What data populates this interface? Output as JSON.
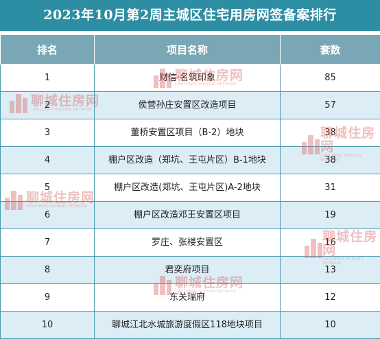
{
  "title": "2023年10月第2周主城区住宅用房网签备案排行",
  "header": {
    "rank": "排名",
    "name": "项目名称",
    "units": "套数"
  },
  "rows": [
    {
      "rank": "1",
      "name": "财信·名筑印象",
      "units": "85"
    },
    {
      "rank": "2",
      "name": "侯营孙庄安置区改造项目",
      "units": "57"
    },
    {
      "rank": "3",
      "name": "董桥安置区项目（B-2）地块",
      "units": "38"
    },
    {
      "rank": "4",
      "name": "棚户区改造（郑坑、王屯片区）B-1地块",
      "units": "38"
    },
    {
      "rank": "5",
      "name": "棚户区改造(郑坑、王屯片区)A-2地块",
      "units": "31"
    },
    {
      "rank": "6",
      "name": "棚户区改造邓王安置区项目",
      "units": "19"
    },
    {
      "rank": "7",
      "name": "罗庄、张楼安置区",
      "units": "16"
    },
    {
      "rank": "8",
      "name": "君奕府项目",
      "units": "13"
    },
    {
      "rank": "9",
      "name": "东关瑞府",
      "units": "12"
    },
    {
      "rank": "10",
      "name": "聊城江北水城旅游度假区118地块项目",
      "units": "10"
    }
  ],
  "watermark": {
    "text": "聊城住房网",
    "subtext": "LIAOCHENG HOUSING NETWORK"
  },
  "colors": {
    "title_bg": "#2d8da3",
    "header_bg": "#7aa7b5",
    "row_alt": "#dcedf5",
    "border": "#4a9ab0",
    "watermark": "#d96a6a"
  }
}
